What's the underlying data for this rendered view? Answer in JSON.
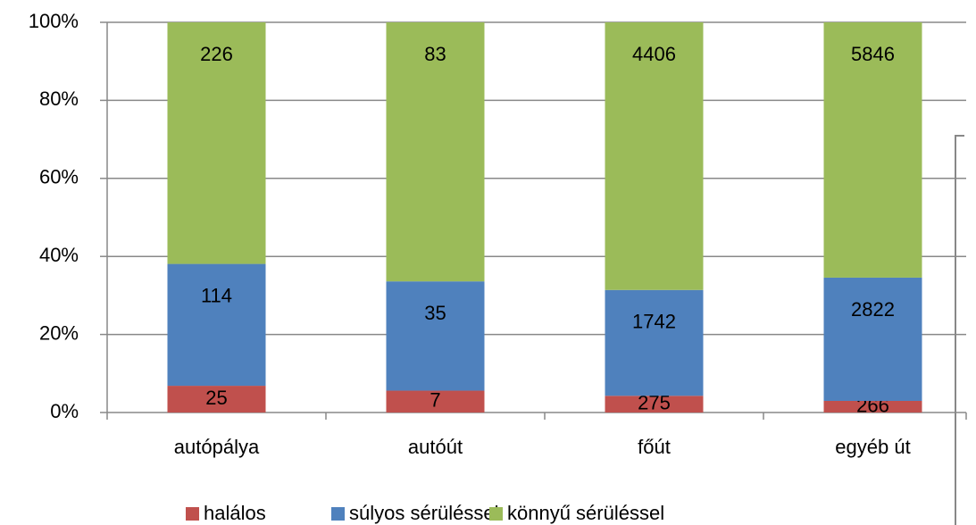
{
  "chart_data": {
    "type": "bar",
    "stacking": "percent",
    "categories": [
      "autópálya",
      "autóút",
      "főút",
      "egyéb út"
    ],
    "series": [
      {
        "name": "halálos",
        "color": "#c0504d",
        "values": [
          25,
          7,
          275,
          266
        ]
      },
      {
        "name": "súlyos sérüléssel",
        "color": "#4f81bd",
        "values": [
          114,
          35,
          1742,
          2822
        ]
      },
      {
        "name": "könnyű sérüléssel",
        "color": "#9bbb59",
        "values": [
          226,
          83,
          4406,
          5846
        ]
      }
    ],
    "ylim": [
      0,
      100
    ],
    "yticks": [
      {
        "value": 0,
        "label": "0%"
      },
      {
        "value": 20,
        "label": "20%"
      },
      {
        "value": 40,
        "label": "40%"
      },
      {
        "value": 60,
        "label": "60%"
      },
      {
        "value": 80,
        "label": "80%"
      },
      {
        "value": 100,
        "label": "100%"
      }
    ],
    "grid": true,
    "legend": "bottom"
  }
}
